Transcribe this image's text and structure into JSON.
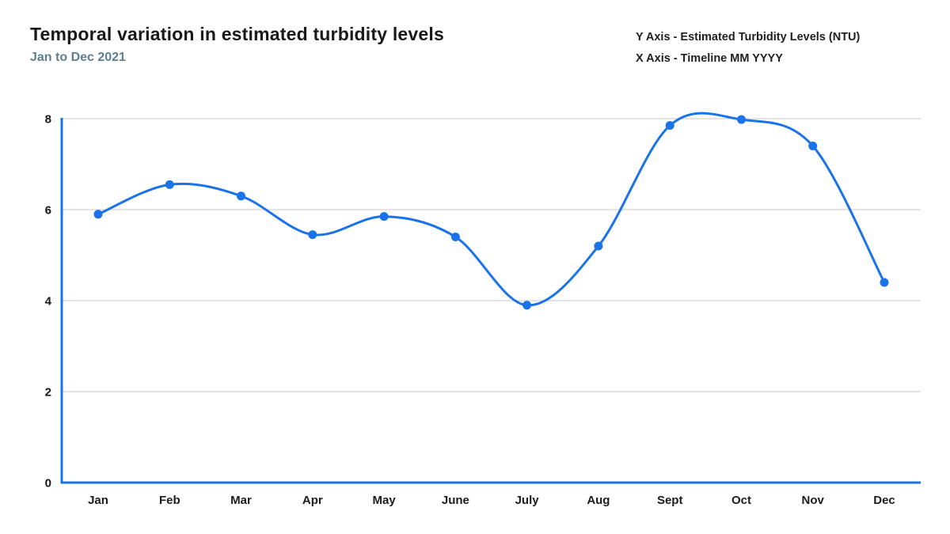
{
  "page": {
    "title": "Temporal variation in estimated turbidity levels",
    "subtitle": "Jan to Dec 2021",
    "axis_note_y": "Y Axis - Estimated Turbidity Levels (NTU)",
    "axis_note_x": "X Axis - Timeline MM YYYY"
  },
  "colors": {
    "line": "#1a73e8",
    "marker": "#1a73e8",
    "axis": "#1a73e8",
    "grid": "#d4d4d4",
    "title": "#191919",
    "subtitle": "#5f7e8e",
    "tick_label": "#1c1c1c",
    "background": "#ffffff"
  },
  "chart_data": {
    "type": "line",
    "title": "Temporal variation in estimated turbidity levels",
    "subtitle": "Jan to Dec 2021",
    "categories": [
      "Jan",
      "Feb",
      "Mar",
      "Apr",
      "May",
      "June",
      "July",
      "Aug",
      "Sept",
      "Oct",
      "Nov",
      "Dec"
    ],
    "values": [
      5.9,
      6.55,
      6.3,
      5.45,
      5.85,
      5.4,
      3.9,
      5.2,
      7.85,
      7.98,
      7.4,
      4.4
    ],
    "xlabel": "Timeline MM YYYY",
    "ylabel": "Estimated Turbidity Levels (NTU)",
    "ylim": [
      0,
      8
    ],
    "yticks": [
      0,
      2,
      4,
      6,
      8
    ],
    "grid": true,
    "smooth": true,
    "marker": "circle",
    "legend_position": "none"
  }
}
